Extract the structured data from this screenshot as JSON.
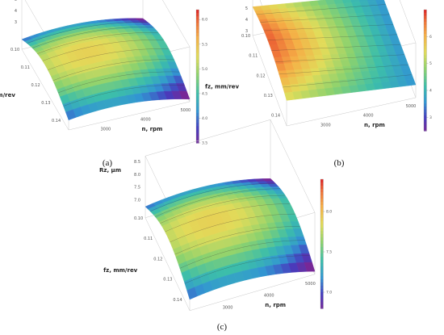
{
  "chart_data": [
    {
      "type": "surface3d",
      "panel_label": "(a)",
      "zlabel": "Rz, μm",
      "ylabel": "fz, mm/rev",
      "xlabel": "n, rpm",
      "x_ticks": [
        "3000",
        "4000",
        "5000"
      ],
      "y_ticks": [
        "0.10",
        "0.11",
        "0.12",
        "0.13",
        "0.14"
      ],
      "z_ticks": [
        "5",
        "4",
        "3"
      ],
      "colorbar_ticks": [
        "6.0",
        "5.5",
        "5.0",
        "4.5",
        "4.0",
        "3.5"
      ],
      "colorbar_range": [
        3.5,
        6.2
      ],
      "shape": "saddle"
    },
    {
      "type": "surface3d",
      "panel_label": "(b)",
      "zlabel": "Rz, μm",
      "ylabel": "fz, mm/rev",
      "xlabel": "n, rpm",
      "x_ticks": [
        "3000",
        "4000",
        "5000"
      ],
      "y_ticks": [
        "0.10",
        "0.11",
        "0.12",
        "0.13",
        "0.14"
      ],
      "z_ticks": [
        "7",
        "6",
        "5",
        "4",
        "3"
      ],
      "colorbar_ticks": [
        "6",
        "5",
        "4",
        "3"
      ],
      "colorbar_range": [
        2.5,
        7.0
      ],
      "shape": "ridge"
    },
    {
      "type": "surface3d",
      "panel_label": "(c)",
      "zlabel": "Rz, μm",
      "ylabel": "fz, mm/rev",
      "xlabel": "n, rpm",
      "x_ticks": [
        "3000",
        "4000",
        "5000"
      ],
      "y_ticks": [
        "0.10",
        "0.11",
        "0.12",
        "0.13",
        "0.14"
      ],
      "z_ticks": [
        "8.5",
        "8.0",
        "7.5",
        "7.0"
      ],
      "colorbar_ticks": [
        "8.0",
        "7.5",
        "7.0"
      ],
      "colorbar_range": [
        6.8,
        8.4
      ],
      "shape": "saddle"
    }
  ]
}
